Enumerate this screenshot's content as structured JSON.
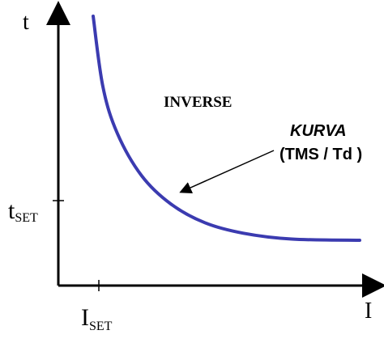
{
  "chart_data": {
    "type": "line",
    "title": "",
    "xlabel": "I",
    "ylabel": "t",
    "x_tick_label": {
      "main": "I",
      "sub": "SET"
    },
    "y_tick_label": {
      "main": "t",
      "sub": "SET"
    },
    "region_label": "INVERSE",
    "annotation": {
      "line1": "KURVA",
      "line2": "(TMS / Td )"
    },
    "curve_color": "#3b3bb0",
    "axis_color": "#000000",
    "series": [
      {
        "name": "",
        "description_points": [
          {
            "x": 1.0,
            "y": 1.0
          },
          {
            "x": 1.2,
            "y": 0.7
          },
          {
            "x": 1.5,
            "y": 0.5
          },
          {
            "x": 2.0,
            "y": 0.32
          },
          {
            "x": 2.6,
            "y": 0.2
          },
          {
            "x": 3.3,
            "y": 0.12
          },
          {
            "x": 4.1,
            "y": 0.075
          },
          {
            "x": 5.1,
            "y": 0.05
          },
          {
            "x": 6.5,
            "y": 0.045
          }
        ]
      }
    ]
  }
}
